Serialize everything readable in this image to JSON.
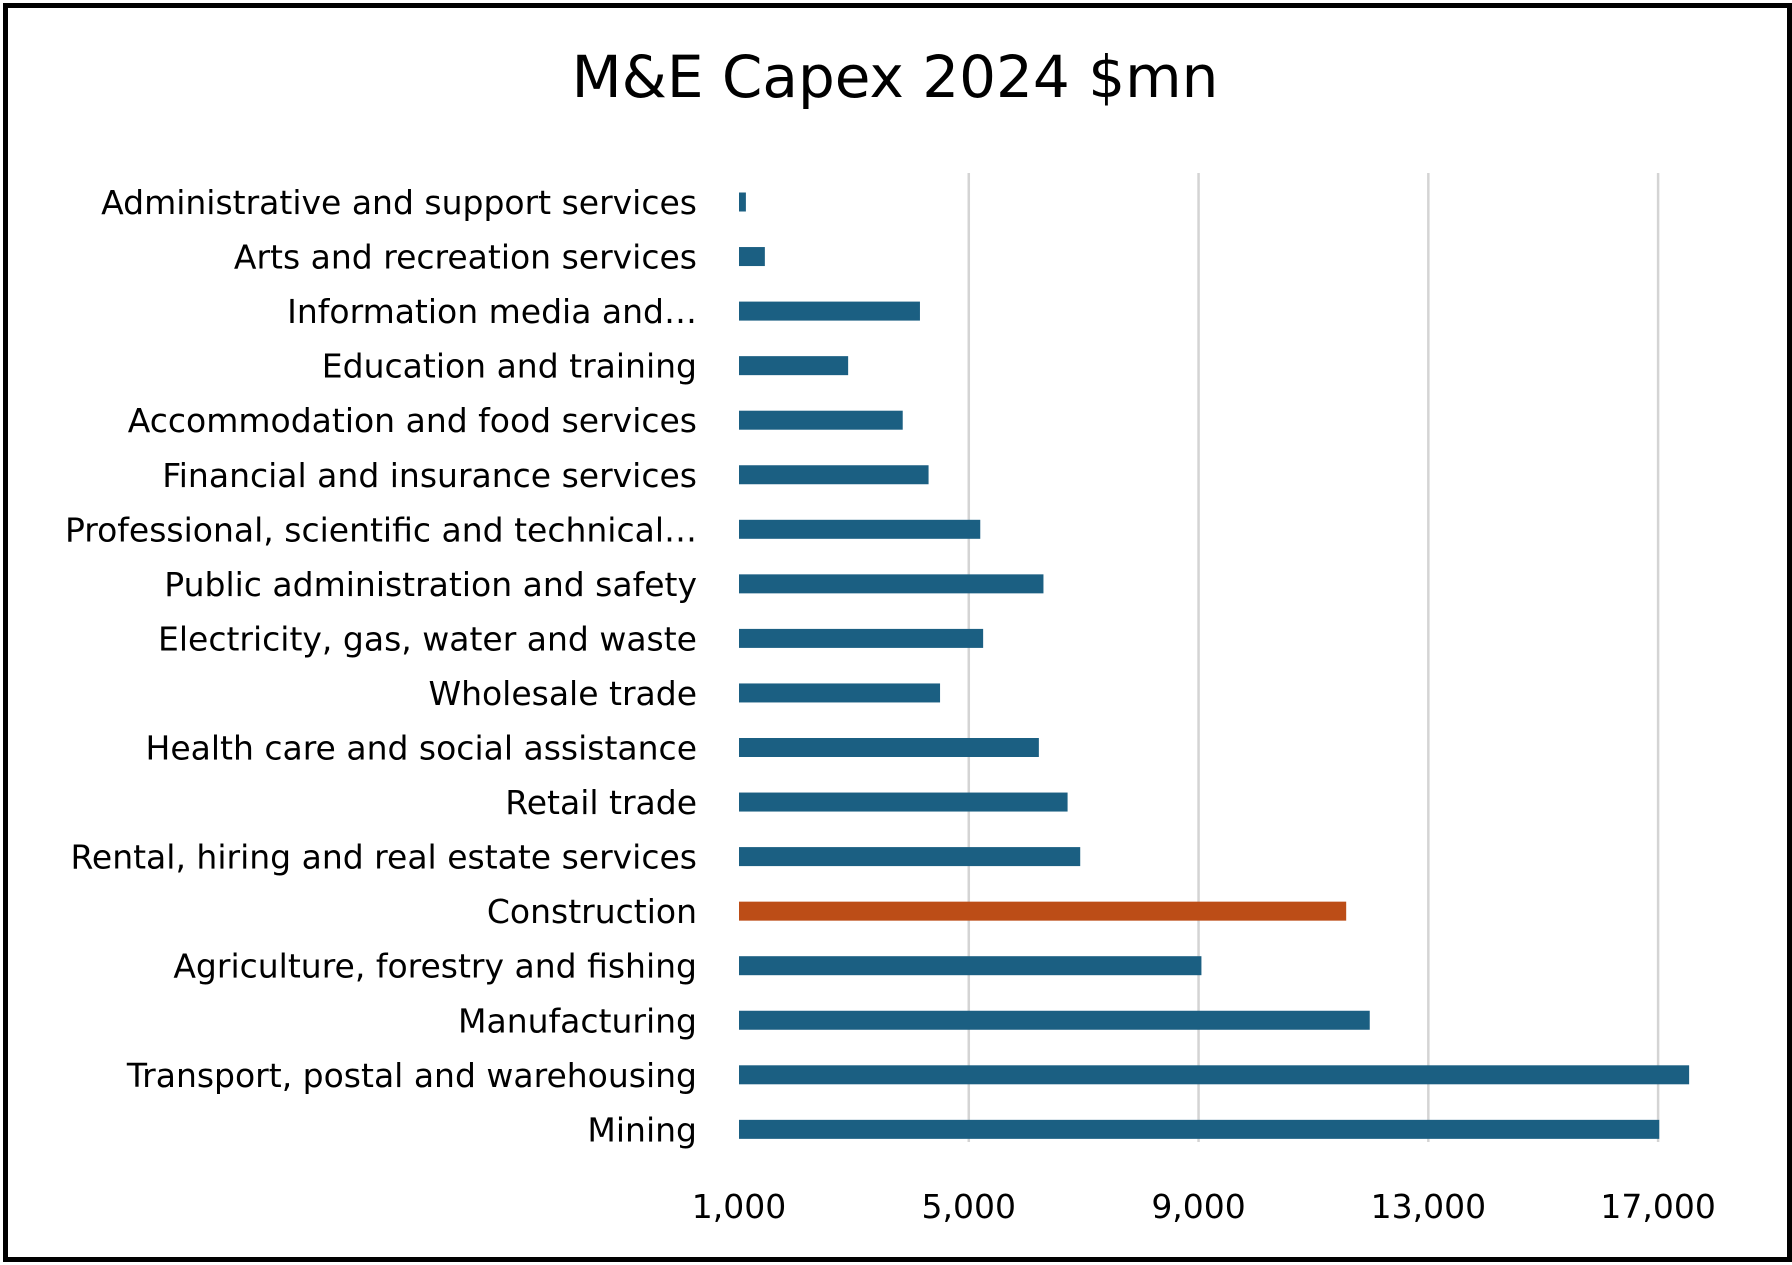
{
  "chart_data": {
    "type": "bar",
    "orientation": "horizontal",
    "title": "M&E Capex 2024 $mn",
    "xlabel": "",
    "ylabel": "",
    "xlim": [
      1000,
      19000
    ],
    "xticks": [
      1000,
      5000,
      9000,
      13000,
      17000
    ],
    "xtick_labels": [
      "1,000",
      "5,000",
      "9,000",
      "13,000",
      "17,000"
    ],
    "grid": true,
    "legend": "none",
    "categories": [
      "Administrative and support services",
      "Arts and recreation services",
      "Information media and…",
      "Education and training",
      "Accommodation and food services",
      "Financial and insurance services",
      "Professional, scientific and technical…",
      "Public administration and safety",
      "Electricity, gas, water and waste",
      "Wholesale trade",
      "Health care and social assistance",
      "Retail trade",
      "Rental, hiring and real estate services",
      "Construction",
      "Agriculture, forestry and fishing",
      "Manufacturing",
      "Transport, postal and warehousing",
      "Mining"
    ],
    "values": [
      1120,
      1450,
      4150,
      2900,
      3850,
      4300,
      5200,
      6300,
      5250,
      4500,
      6220,
      6720,
      6940,
      11570,
      9050,
      11980,
      17540,
      17020
    ],
    "colors": {
      "default": "#1b5f82",
      "highlight": "#bc4d17",
      "highlight_category": "Construction"
    }
  }
}
